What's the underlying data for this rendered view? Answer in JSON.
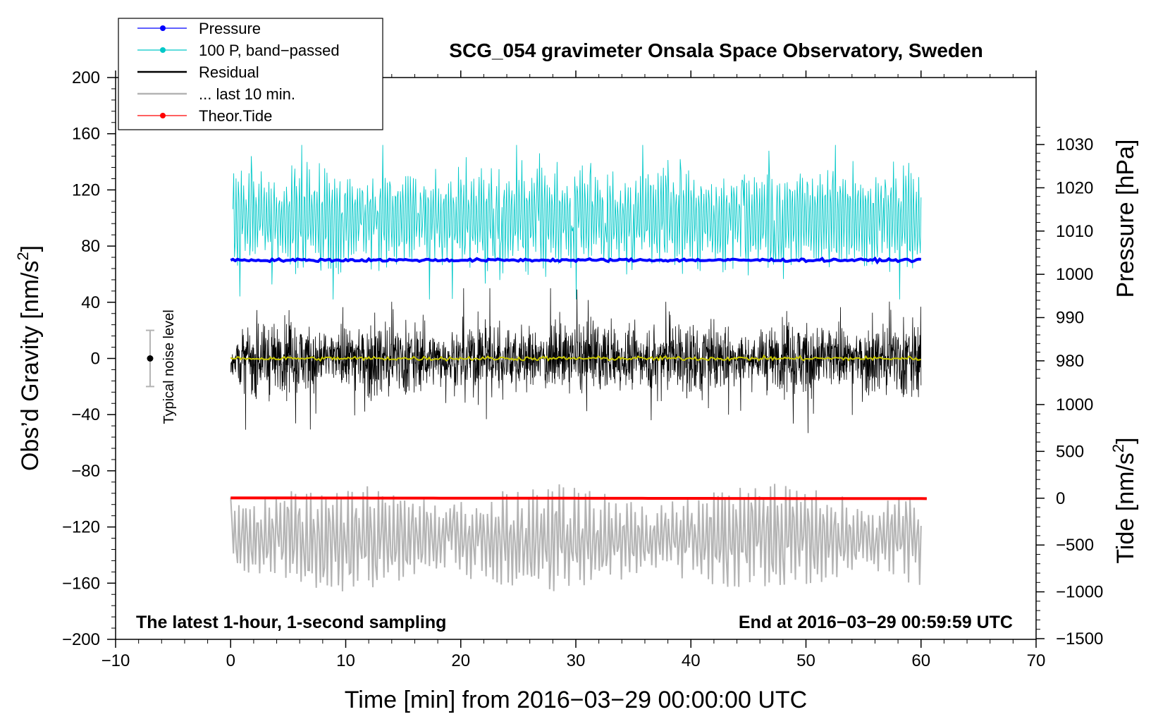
{
  "chart_data": {
    "type": "line",
    "title": "SCG_054 gravimeter Onsala Space Observatory, Sweden",
    "xlabel": "Time [min] from 2016−03−29 00:00:00 UTC",
    "ylabel_left": "Obs’d Gravity [nm/s",
    "ylabel_left_sup": "2",
    "ylabel_left_end": "]",
    "ylabel_right_pressure": "Pressure [hPa]",
    "ylabel_right_tide": "Tide [nm/s",
    "ylabel_right_tide_sup": "2",
    "ylabel_right_tide_end": "]",
    "xlim": [
      -10,
      70
    ],
    "ylim": [
      -200,
      200
    ],
    "x_ticks": [
      "−10",
      "0",
      "10",
      "20",
      "30",
      "40",
      "50",
      "60",
      "70"
    ],
    "x_tick_values": [
      -10,
      0,
      10,
      20,
      30,
      40,
      50,
      60,
      70
    ],
    "y_ticks": [
      "200",
      "160",
      "120",
      "80",
      "40",
      "0",
      "−40",
      "−80",
      "−120",
      "−160",
      "−200"
    ],
    "y_tick_values": [
      200,
      160,
      120,
      80,
      40,
      0,
      -40,
      -80,
      -120,
      -160,
      -200
    ],
    "pressure_axis": {
      "ticks": [
        "1030",
        "1020",
        "1010",
        "1000",
        "990",
        "980"
      ],
      "tick_values": [
        1030,
        1020,
        1010,
        1000,
        990,
        980
      ],
      "gravity_at_1030": 152.3,
      "gravity_per_hpa": 3.08
    },
    "tide_axis": {
      "ticks": [
        "1000",
        "500",
        "0",
        "−500",
        "−1000",
        "−1500"
      ],
      "tick_values": [
        1000,
        500,
        0,
        -500,
        -1000,
        -1500
      ],
      "gravity_at_0": -99.5,
      "gravity_per_nms2": 0.06667
    },
    "bottom_left_note": "The latest 1-hour, 1-second sampling",
    "bottom_right_note": "End at 2016−03−29 00:59:59 UTC",
    "noise_label": "Typical noise level",
    "noise_bar": {
      "x": -7,
      "center": 0,
      "low": -20,
      "high": 20
    },
    "legend": [
      {
        "label": "Pressure",
        "color": "#0000ff",
        "marker": true
      },
      {
        "label": "100 P, band−passed",
        "color": "#00c8c8",
        "marker": true
      },
      {
        "label": "Residual",
        "color": "#000000",
        "marker": false
      },
      {
        "label": "... last 10 min.",
        "color": "#b4b4b4",
        "marker": false
      },
      {
        "label": "Theor.Tide",
        "color": "#ff0000",
        "marker": true
      }
    ],
    "series": [
      {
        "name": "Pressure",
        "color": "#0000ff",
        "x_range": [
          0,
          60
        ],
        "level": 70,
        "amplitude": 1.2
      },
      {
        "name": "100 P, band-passed",
        "color": "#00c8c8",
        "x_range": [
          0.2,
          60
        ],
        "center": 100,
        "amplitude": 30,
        "min": 42,
        "max": 152
      },
      {
        "name": "Residual",
        "color": "#000000",
        "x_range": [
          0,
          60
        ],
        "center": 0,
        "amplitude": 18,
        "min": -55,
        "max": 50
      },
      {
        "name": "Residual smoothed",
        "color": "#c8c800",
        "x_range": [
          0,
          60
        ],
        "center": 0,
        "amplitude": 1.5
      },
      {
        "name": "... last 10 min.",
        "color": "#b4b4b4",
        "x_range": [
          0,
          60
        ],
        "center": -128,
        "amplitude": 20,
        "min": -178,
        "max": -76
      },
      {
        "name": "Theor.Tide",
        "color": "#ff0000",
        "x_range": [
          0,
          60.5
        ],
        "start": -99.3,
        "end": -99.8
      }
    ]
  }
}
